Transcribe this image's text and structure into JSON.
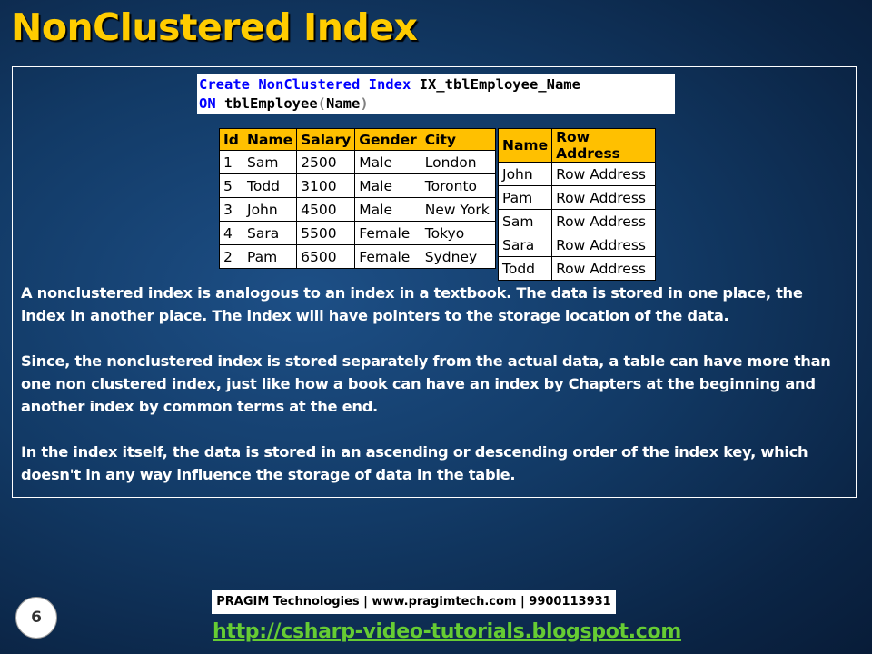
{
  "title": "NonClustered Index",
  "sql": {
    "line1": {
      "kw": "Create NonClustered Index",
      "ident": "IX_tblEmployee_Name"
    },
    "line2": {
      "kw": "ON",
      "ident": "tblEmployee",
      "open": "(",
      "col": "Name",
      "close": ")"
    }
  },
  "employee_table": {
    "headers": [
      "Id",
      "Name",
      "Salary",
      "Gender",
      "City"
    ],
    "rows": [
      [
        "1",
        "Sam",
        "2500",
        "Male",
        "London"
      ],
      [
        "5",
        "Todd",
        "3100",
        "Male",
        "Toronto"
      ],
      [
        "3",
        "John",
        "4500",
        "Male",
        "New York"
      ],
      [
        "4",
        "Sara",
        "5500",
        "Female",
        "Tokyo"
      ],
      [
        "2",
        "Pam",
        "6500",
        "Female",
        "Sydney"
      ]
    ]
  },
  "index_table": {
    "headers": [
      "Name",
      "Row Address"
    ],
    "rows": [
      [
        "John",
        "Row Address"
      ],
      [
        "Pam",
        "Row Address"
      ],
      [
        "Sam",
        "Row Address"
      ],
      [
        "Sara",
        "Row Address"
      ],
      [
        "Todd",
        "Row Address"
      ]
    ]
  },
  "paragraphs": [
    "A nonclustered index is analogous to an index in a textbook. The data is stored in one place, the index in another place. The index will have pointers to the storage location of the data.",
    "Since, the nonclustered index is stored separately from the actual data, a table can have more than one non clustered index, just like how a book can have an index by Chapters at the beginning and another index by common terms at the end.",
    "In the index itself, the data is stored in an ascending or descending order of the index key, which doesn't in any way influence the storage of data in the table."
  ],
  "footer": {
    "company": "PRAGIM Technologies | www.pragimtech.com | 9900113931",
    "page_number": "6",
    "link": "http://csharp-video-tutorials.blogspot.com"
  },
  "colors": {
    "title": "#ffcc00",
    "header_fill": "#ffc000",
    "sql_keyword": "#0000ff",
    "link": "#66cc33"
  }
}
